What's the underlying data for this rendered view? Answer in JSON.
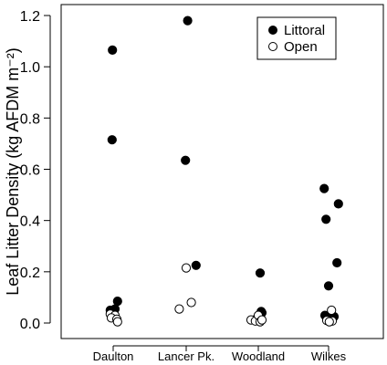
{
  "chart_data": {
    "type": "scatter",
    "title": "",
    "xlabel": "",
    "ylabel": "Leaf Litter Density (kg AFDM m⁻²)",
    "categories": [
      "Daulton",
      "Lancer Pk.",
      "Woodland",
      "Wilkes"
    ],
    "ylim": [
      -0.05,
      1.22
    ],
    "yticks": [
      0.0,
      0.2,
      0.4,
      0.6,
      0.8,
      1.0,
      1.2
    ],
    "ytick_labels": [
      "0.0",
      "0.2",
      "0.4",
      "0.6",
      "0.8",
      "1.0",
      "1.2"
    ],
    "grid": false,
    "legend_position": "top-right",
    "series": [
      {
        "name": "Littoral",
        "marker": "filled-circle",
        "color": "#000000",
        "points": [
          {
            "category": "Daulton",
            "jitter": -0.02,
            "y": 1.065
          },
          {
            "category": "Daulton",
            "jitter": -0.03,
            "y": 0.715
          },
          {
            "category": "Daulton",
            "jitter": 0.12,
            "y": 0.085
          },
          {
            "category": "Daulton",
            "jitter": 0.05,
            "y": 0.055
          },
          {
            "category": "Daulton",
            "jitter": -0.08,
            "y": 0.05
          },
          {
            "category": "Daulton",
            "jitter": 0.0,
            "y": 0.035
          },
          {
            "category": "Lancer Pk.",
            "jitter": 0.04,
            "y": 1.18
          },
          {
            "category": "Lancer Pk.",
            "jitter": -0.02,
            "y": 0.635
          },
          {
            "category": "Lancer Pk.",
            "jitter": 0.27,
            "y": 0.225
          },
          {
            "category": "Woodland",
            "jitter": 0.05,
            "y": 0.195
          },
          {
            "category": "Woodland",
            "jitter": 0.08,
            "y": 0.045
          },
          {
            "category": "Woodland",
            "jitter": 0.1,
            "y": 0.04
          },
          {
            "category": "Woodland",
            "jitter": -0.03,
            "y": 0.02
          },
          {
            "category": "Wilkes",
            "jitter": -0.12,
            "y": 0.525
          },
          {
            "category": "Wilkes",
            "jitter": 0.27,
            "y": 0.465
          },
          {
            "category": "Wilkes",
            "jitter": -0.07,
            "y": 0.405
          },
          {
            "category": "Wilkes",
            "jitter": 0.23,
            "y": 0.235
          },
          {
            "category": "Wilkes",
            "jitter": 0.0,
            "y": 0.145
          },
          {
            "category": "Wilkes",
            "jitter": -0.1,
            "y": 0.03
          },
          {
            "category": "Wilkes",
            "jitter": 0.15,
            "y": 0.025
          },
          {
            "category": "Wilkes",
            "jitter": -0.05,
            "y": 0.02
          },
          {
            "category": "Wilkes",
            "jitter": 0.08,
            "y": 0.015
          }
        ]
      },
      {
        "name": "Open",
        "marker": "open-circle",
        "color": "#000000",
        "points": [
          {
            "category": "Daulton",
            "jitter": -0.08,
            "y": 0.035
          },
          {
            "category": "Daulton",
            "jitter": 0.05,
            "y": 0.03
          },
          {
            "category": "Daulton",
            "jitter": -0.05,
            "y": 0.02
          },
          {
            "category": "Daulton",
            "jitter": 0.1,
            "y": 0.015
          },
          {
            "category": "Daulton",
            "jitter": 0.12,
            "y": 0.005
          },
          {
            "category": "Lancer Pk.",
            "jitter": 0.0,
            "y": 0.215
          },
          {
            "category": "Lancer Pk.",
            "jitter": 0.14,
            "y": 0.08
          },
          {
            "category": "Lancer Pk.",
            "jitter": -0.19,
            "y": 0.055
          },
          {
            "category": "Woodland",
            "jitter": -0.2,
            "y": 0.012
          },
          {
            "category": "Woodland",
            "jitter": -0.08,
            "y": 0.008
          },
          {
            "category": "Woodland",
            "jitter": 0.0,
            "y": 0.03
          },
          {
            "category": "Woodland",
            "jitter": 0.05,
            "y": 0.005
          },
          {
            "category": "Woodland",
            "jitter": 0.1,
            "y": 0.012
          },
          {
            "category": "Wilkes",
            "jitter": 0.08,
            "y": 0.05
          },
          {
            "category": "Wilkes",
            "jitter": -0.05,
            "y": 0.01
          },
          {
            "category": "Wilkes",
            "jitter": 0.1,
            "y": 0.008
          },
          {
            "category": "Wilkes",
            "jitter": 0.02,
            "y": 0.005
          }
        ]
      }
    ]
  }
}
